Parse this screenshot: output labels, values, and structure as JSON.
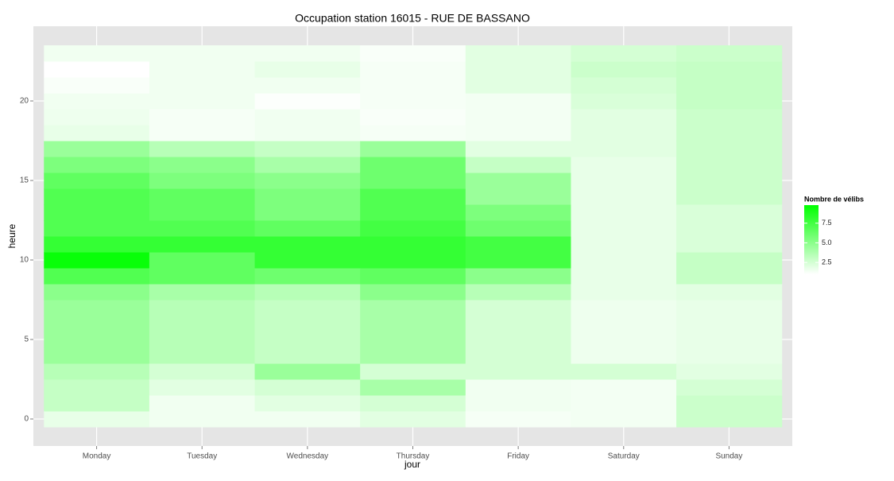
{
  "chart_data": {
    "type": "heatmap",
    "title": "Occupation station 16015 - RUE DE BASSANO",
    "x_label": "jour",
    "y_label": "heure",
    "legend_title": "Nombre de vélibs",
    "categories": [
      "Monday",
      "Tuesday",
      "Wednesday",
      "Thursday",
      "Friday",
      "Saturday",
      "Sunday"
    ],
    "y": [
      0,
      1,
      2,
      3,
      4,
      5,
      6,
      7,
      8,
      9,
      10,
      11,
      12,
      13,
      14,
      15,
      16,
      17,
      18,
      19,
      20,
      21,
      22,
      23
    ],
    "values": [
      [
        1.8,
        3,
        3,
        3.5,
        4.5,
        4.5,
        4.5,
        4.5,
        5,
        7,
        9.5,
        8,
        7,
        7,
        7,
        6.5,
        5.5,
        4.5,
        1.8,
        1.6,
        1.5,
        1.2,
        1.0,
        1.5
      ],
      [
        1.5,
        1.5,
        2,
        2.5,
        3.5,
        3.5,
        3.5,
        3.5,
        4,
        6.5,
        6.5,
        8,
        7,
        6.5,
        6.5,
        5.5,
        5,
        3.5,
        1.3,
        1.3,
        1.5,
        1.5,
        1.5,
        1.5
      ],
      [
        1.5,
        2,
        2.5,
        4.5,
        3,
        3,
        3,
        3,
        3.5,
        6,
        8,
        8,
        6.5,
        5.5,
        5.5,
        5,
        4,
        3,
        1.5,
        1.5,
        1.1,
        1.5,
        1.8,
        1.5
      ],
      [
        2,
        2.5,
        4,
        2.5,
        4,
        4,
        4,
        4,
        5,
        6.5,
        8,
        8,
        7.5,
        7,
        7,
        6,
        6,
        4.5,
        1.3,
        1.2,
        1.3,
        1.3,
        1.3,
        1.2
      ],
      [
        1.3,
        1.5,
        1.5,
        2.5,
        2.5,
        2.5,
        2.5,
        2.5,
        3.5,
        5,
        7.5,
        7.5,
        6,
        5.5,
        4.5,
        4.5,
        3,
        2,
        1.4,
        1.4,
        1.4,
        2,
        2,
        2
      ],
      [
        1.4,
        1.4,
        1.4,
        2.5,
        1.6,
        1.6,
        1.6,
        1.6,
        1.8,
        1.8,
        1.8,
        1.8,
        1.8,
        1.8,
        1.8,
        1.8,
        1.8,
        2,
        2,
        2,
        2.3,
        2.5,
        2.8,
        2.5
      ],
      [
        2.8,
        2.8,
        2.5,
        2,
        1.8,
        1.8,
        1.8,
        1.8,
        2,
        3,
        3,
        2.3,
        2.3,
        2.3,
        2.8,
        2.8,
        2.8,
        2.8,
        2.8,
        2.8,
        3,
        3,
        3,
        2.8
      ]
    ],
    "ylim": [
      -1.7,
      24.7
    ],
    "yticks": [
      0,
      5,
      10,
      15,
      20
    ],
    "zlim": [
      1,
      9.8
    ],
    "zticks": [
      2.5,
      {
        "value": 5,
        "label": "5.0"
      },
      {
        "value": 7.5,
        "label": "7.5"
      }
    ],
    "low_color": "#ffffff",
    "high_color": "#00ff00",
    "grid": true
  }
}
